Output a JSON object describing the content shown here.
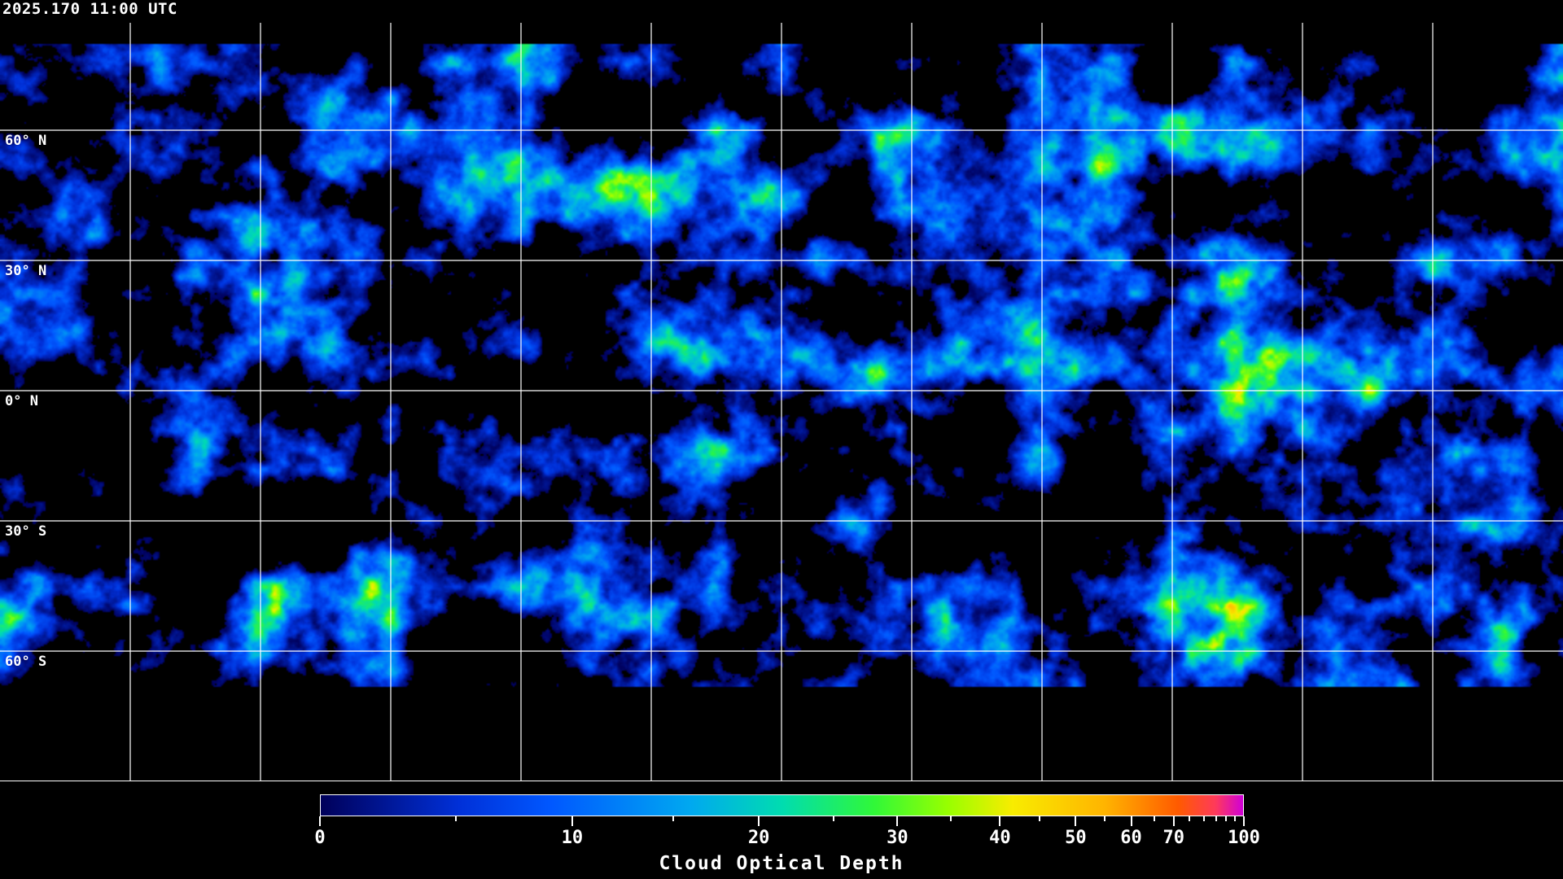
{
  "header": {
    "title": "2025.170 11:00 UTC"
  },
  "map": {
    "projection": "equirectangular",
    "coastlines_color": "#ffffff",
    "grid_color": "#ffffff",
    "grid_spacing_deg": 30,
    "latitude_labels": [
      "60° N",
      "30° N",
      "0° N",
      "30° S",
      "60° S"
    ],
    "no_data_color": "#000000"
  },
  "colorbar": {
    "title": "Cloud Optical Depth",
    "range": [
      0,
      100
    ],
    "major_ticks": [
      "0",
      "10",
      "20",
      "30",
      "40",
      "50",
      "60",
      "70",
      "100"
    ],
    "minor_ticks": [
      5,
      15,
      25,
      35,
      45,
      55,
      65,
      75,
      80,
      85,
      90,
      95
    ],
    "colormap": [
      "#00005a",
      "#0030d8",
      "#0058ff",
      "#00a8f0",
      "#00dcb0",
      "#30f838",
      "#98ff00",
      "#f8ec00",
      "#ffb400",
      "#ff5a00",
      "#ff3a5a",
      "#d000d8"
    ]
  }
}
